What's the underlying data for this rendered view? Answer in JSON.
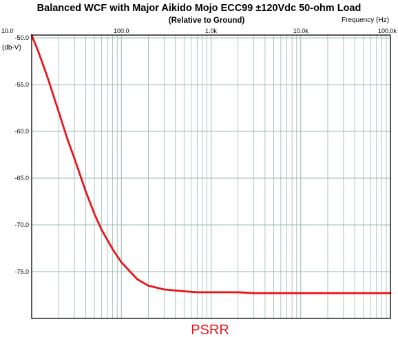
{
  "chart_data": {
    "type": "line",
    "title": "Balanced WCF with Major Aikido Mojo ECC99 ±120Vdc 50-ohm Load",
    "subtitle": "(Relative to Ground)",
    "xlabel": "Frequency   (Hz)",
    "ylabel": "(db-V)",
    "x_scale": "log",
    "xlim": [
      10,
      100000
    ],
    "ylim": [
      -80.0,
      -49.7
    ],
    "grid": true,
    "x_ticks": [
      {
        "value": 10,
        "label": "10.0"
      },
      {
        "value": 100,
        "label": "100.0"
      },
      {
        "value": 1000,
        "label": "1.0k"
      },
      {
        "value": 10000,
        "label": "10.0k"
      },
      {
        "value": 100000,
        "label": "100.0k"
      }
    ],
    "y_ticks": [
      {
        "value": -50,
        "label": "-50.0"
      },
      {
        "value": -55,
        "label": "-55.0"
      },
      {
        "value": -60,
        "label": "-60.0"
      },
      {
        "value": -65,
        "label": "-65.0"
      },
      {
        "value": -70,
        "label": "-70.0"
      },
      {
        "value": -75,
        "label": "-75.0"
      }
    ],
    "series": [
      {
        "name": "PSRR",
        "color": "#e8161b",
        "x": [
          10,
          12,
          15,
          20,
          25,
          30,
          40,
          50,
          60,
          80,
          100,
          150,
          200,
          300,
          500,
          700,
          1000,
          2000,
          3000,
          10000,
          30000,
          100000
        ],
        "y": [
          -49.7,
          -51.6,
          -54.2,
          -57.9,
          -60.8,
          -62.9,
          -66.4,
          -68.8,
          -70.5,
          -72.6,
          -74.0,
          -75.8,
          -76.5,
          -76.9,
          -77.1,
          -77.2,
          -77.2,
          -77.2,
          -77.3,
          -77.3,
          -77.3,
          -77.3
        ]
      }
    ],
    "legend": {
      "position": "bottom-center",
      "label": "PSRR",
      "color": "#e8161b"
    },
    "colors": {
      "background": "#ffffff",
      "plot_background": "#ffffff",
      "grid": "#98b8b0",
      "frame": "#000000",
      "series": "#e8161b"
    }
  }
}
